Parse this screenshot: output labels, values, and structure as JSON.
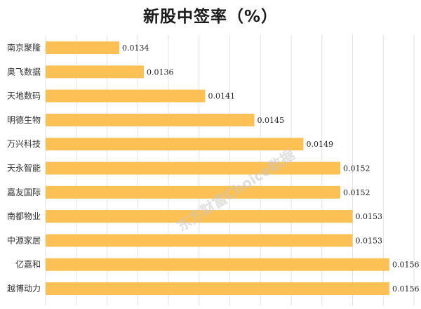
{
  "chart_data": {
    "type": "bar",
    "orientation": "horizontal",
    "title": "新股中签率（%）",
    "categories": [
      "南京聚隆",
      "奥飞数据",
      "天地数码",
      "明德生物",
      "万兴科技",
      "天永智能",
      "嘉友国际",
      "南都物业",
      "中源家居",
      "亿嘉和",
      "越博动力"
    ],
    "values": [
      0.0134,
      0.0136,
      0.0141,
      0.0145,
      0.0149,
      0.0152,
      0.0152,
      0.0153,
      0.0153,
      0.0156,
      0.0156
    ],
    "value_labels": [
      "0.0134",
      "0.0136",
      "0.0141",
      "0.0145",
      "0.0149",
      "0.0152",
      "0.0152",
      "0.0153",
      "0.0153",
      "0.0156",
      "0.0156"
    ],
    "xlim": [
      0.0128,
      0.0158
    ],
    "grid": true,
    "bar_color": "#FCC054",
    "watermark": "东方财富Choice数据"
  }
}
